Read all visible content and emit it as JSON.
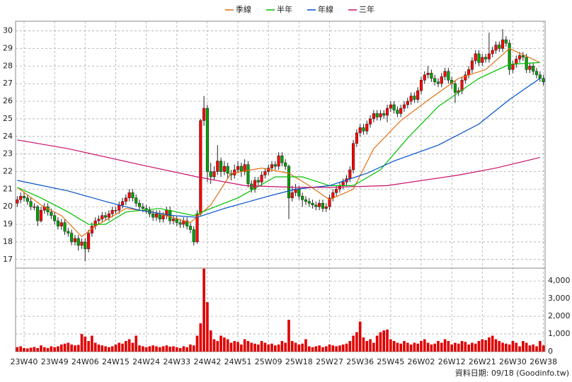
{
  "chart_data": {
    "type": "candlestick",
    "categories": [
      null,
      null,
      "23W40",
      null,
      null,
      null,
      null,
      null,
      null,
      null,
      null,
      "23W49",
      null,
      null,
      null,
      null,
      null,
      null,
      null,
      null,
      "24W06",
      null,
      null,
      null,
      null,
      null,
      null,
      null,
      null,
      "24W15",
      null,
      null,
      null,
      null,
      null,
      null,
      null,
      null,
      "24W24",
      null,
      null,
      null,
      null,
      null,
      null,
      null,
      null,
      "24W33",
      null,
      null,
      null,
      null,
      null,
      null,
      null,
      null,
      "24W42",
      null,
      null,
      null,
      null,
      null,
      null,
      null,
      null,
      "24W51",
      null,
      null,
      null,
      null,
      null,
      null,
      null,
      null,
      "25W09",
      null,
      null,
      null,
      null,
      null,
      null,
      null,
      null,
      "25W18",
      null,
      null,
      null,
      null,
      null,
      null,
      null,
      null,
      "25W27",
      null,
      null,
      null,
      null,
      null,
      null,
      null,
      null,
      "25W36",
      null,
      null,
      null,
      null,
      null,
      null,
      null,
      null,
      "25W45",
      null,
      null,
      null,
      null,
      null,
      null,
      null,
      null,
      "26W02",
      null,
      null,
      null,
      null,
      null,
      null,
      null,
      null,
      "26W12",
      null,
      null,
      null,
      null,
      null,
      null,
      null,
      null,
      "26W21",
      null,
      null,
      null,
      null,
      null,
      null,
      null,
      null,
      "26W30",
      null,
      null,
      null,
      null,
      null,
      null,
      null,
      null,
      "26W38"
    ],
    "open": [
      20.2,
      20.4,
      20.6,
      20.5,
      20.3,
      20.0,
      20.0,
      19.2,
      19.8,
      20.0,
      19.7,
      19.5,
      19.2,
      18.9,
      19.1,
      18.6,
      18.5,
      18.0,
      18.2,
      17.8,
      18.0,
      17.6,
      18.5,
      18.9,
      19.2,
      19.3,
      19.5,
      19.4,
      19.6,
      19.8,
      19.8,
      20.1,
      20.3,
      20.5,
      20.8,
      20.5,
      20.2,
      20.0,
      19.9,
      19.8,
      19.6,
      19.4,
      19.6,
      19.3,
      19.5,
      19.8,
      19.2,
      19.3,
      19.1,
      19.0,
      19.2,
      18.9,
      18.7,
      18.0,
      19.6,
      24.9,
      25.6,
      22.0,
      21.7,
      22.0,
      22.6,
      22.0,
      22.3,
      21.9,
      21.8,
      22.1,
      22.3,
      22.0,
      22.4,
      21.3,
      21.0,
      21.5,
      21.4,
      21.8,
      22.0,
      22.2,
      22.4,
      22.3,
      22.9,
      22.5,
      22.3,
      20.5,
      20.8,
      21.0,
      20.6,
      20.4,
      20.3,
      20.2,
      20.1,
      20.0,
      20.2,
      19.9,
      20.0,
      20.5,
      20.8,
      21.0,
      21.2,
      21.4,
      21.6,
      22.1,
      23.6,
      24.2,
      24.5,
      24.3,
      24.7,
      25.0,
      25.3,
      25.1,
      25.3,
      25.2,
      25.6,
      25.8,
      25.5,
      25.3,
      25.6,
      25.8,
      26.0,
      26.3,
      26.1,
      26.6,
      27.2,
      27.5,
      27.6,
      27.3,
      27.1,
      27.0,
      27.4,
      27.7,
      27.2,
      27.0,
      26.5,
      26.6,
      27.2,
      27.5,
      27.8,
      28.3,
      28.7,
      28.2,
      28.5,
      28.4,
      28.7,
      28.9,
      29.2,
      29.0,
      29.5,
      29.3,
      27.8,
      28.1,
      28.4,
      28.6,
      28.5,
      27.8,
      28.0,
      27.7,
      27.5,
      27.3
    ],
    "high": [
      20.6,
      20.8,
      20.8,
      20.7,
      20.5,
      20.2,
      20.1,
      20.0,
      20.2,
      20.2,
      19.9,
      19.7,
      19.4,
      19.3,
      19.3,
      18.8,
      18.7,
      18.4,
      18.4,
      18.2,
      18.2,
      18.7,
      19.1,
      19.4,
      19.5,
      19.7,
      19.7,
      19.8,
      20.0,
      20.0,
      20.3,
      20.5,
      20.7,
      21.0,
      21.0,
      20.7,
      20.4,
      20.2,
      20.1,
      20.0,
      19.8,
      19.8,
      19.8,
      19.7,
      20.0,
      20.0,
      19.5,
      19.5,
      19.3,
      19.4,
      19.4,
      19.1,
      18.9,
      19.8,
      25.0,
      26.3,
      25.8,
      22.5,
      22.3,
      23.5,
      22.8,
      22.6,
      22.5,
      22.1,
      22.4,
      22.6,
      22.5,
      22.7,
      22.6,
      21.5,
      21.7,
      21.7,
      22.0,
      22.2,
      22.4,
      22.6,
      22.6,
      23.1,
      23.1,
      22.7,
      22.4,
      21.2,
      21.3,
      21.2,
      20.8,
      20.6,
      20.5,
      20.4,
      20.3,
      20.4,
      20.4,
      20.2,
      20.7,
      21.0,
      21.2,
      21.4,
      21.6,
      21.8,
      22.3,
      23.8,
      24.4,
      24.7,
      24.7,
      24.9,
      25.2,
      25.5,
      25.5,
      25.5,
      25.5,
      25.8,
      26.0,
      26.0,
      25.7,
      25.8,
      26.0,
      26.2,
      26.5,
      26.5,
      26.8,
      27.4,
      27.7,
      28.0,
      27.8,
      27.5,
      27.3,
      27.6,
      27.9,
      27.9,
      27.4,
      27.2,
      26.8,
      27.4,
      27.7,
      28.0,
      28.5,
      28.9,
      28.9,
      28.7,
      28.7,
      29.9,
      29.1,
      29.4,
      29.4,
      30.1,
      29.7,
      29.5,
      28.3,
      28.6,
      28.8,
      28.8,
      28.7,
      28.2,
      28.2,
      27.9,
      27.7,
      27.5
    ],
    "low": [
      20.0,
      20.2,
      20.3,
      20.1,
      19.8,
      19.8,
      18.9,
      19.1,
      19.6,
      19.5,
      19.3,
      19.0,
      18.7,
      18.7,
      18.4,
      18.3,
      17.8,
      17.8,
      17.5,
      17.6,
      16.9,
      17.4,
      18.3,
      18.7,
      19.0,
      19.1,
      19.2,
      19.2,
      19.4,
      19.6,
      19.6,
      19.9,
      20.1,
      20.3,
      20.3,
      20.0,
      19.8,
      19.7,
      19.6,
      19.4,
      19.2,
      19.2,
      19.1,
      19.1,
      19.3,
      19.0,
      19.0,
      18.9,
      18.8,
      18.8,
      18.7,
      18.5,
      17.8,
      17.9,
      19.5,
      24.6,
      21.4,
      21.3,
      21.5,
      21.8,
      21.7,
      21.8,
      21.6,
      21.5,
      21.6,
      21.9,
      21.7,
      21.8,
      21.1,
      20.8,
      20.8,
      21.2,
      21.2,
      21.6,
      21.8,
      22.0,
      22.1,
      22.1,
      22.3,
      22.1,
      19.3,
      20.3,
      20.6,
      20.4,
      20.0,
      20.1,
      20.0,
      19.9,
      19.8,
      19.8,
      19.7,
      19.7,
      19.8,
      20.3,
      20.6,
      20.8,
      21.0,
      21.2,
      21.4,
      21.9,
      23.4,
      24.0,
      24.1,
      24.1,
      24.5,
      24.8,
      24.9,
      24.9,
      25.0,
      24.8,
      25.4,
      25.3,
      25.1,
      25.1,
      25.4,
      25.6,
      25.8,
      25.9,
      25.9,
      26.4,
      27.0,
      27.3,
      27.1,
      26.9,
      26.8,
      26.8,
      27.2,
      27.0,
      26.7,
      25.9,
      26.3,
      26.4,
      27.0,
      27.3,
      27.6,
      28.1,
      28.0,
      28.0,
      28.2,
      28.2,
      28.5,
      28.7,
      28.8,
      28.8,
      29.1,
      27.5,
      27.6,
      27.9,
      28.2,
      28.3,
      27.6,
      27.6,
      27.5,
      27.3,
      27.1,
      26.9
    ],
    "close": [
      20.4,
      20.6,
      20.5,
      20.3,
      20.0,
      20.0,
      19.2,
      19.8,
      20.0,
      19.7,
      19.5,
      19.2,
      18.9,
      19.1,
      18.6,
      18.5,
      18.0,
      18.2,
      17.8,
      18.0,
      17.6,
      18.5,
      18.9,
      19.2,
      19.3,
      19.5,
      19.4,
      19.6,
      19.8,
      19.8,
      20.1,
      20.3,
      20.5,
      20.8,
      20.5,
      20.2,
      20.0,
      19.9,
      19.8,
      19.6,
      19.4,
      19.6,
      19.3,
      19.5,
      19.8,
      19.2,
      19.3,
      19.1,
      19.0,
      19.2,
      18.9,
      18.7,
      18.0,
      19.6,
      24.9,
      25.6,
      22.0,
      21.7,
      22.0,
      22.6,
      22.0,
      22.3,
      21.9,
      21.8,
      22.1,
      22.3,
      22.0,
      22.4,
      21.3,
      21.0,
      21.5,
      21.4,
      21.8,
      22.0,
      22.2,
      22.4,
      22.3,
      22.9,
      22.5,
      22.3,
      20.5,
      20.8,
      21.0,
      20.6,
      20.4,
      20.3,
      20.2,
      20.1,
      20.0,
      20.2,
      19.9,
      20.0,
      20.5,
      20.8,
      21.0,
      21.2,
      21.4,
      21.6,
      22.1,
      23.6,
      24.2,
      24.5,
      24.3,
      24.7,
      25.0,
      25.3,
      25.1,
      25.3,
      25.2,
      25.6,
      25.8,
      25.5,
      25.3,
      25.6,
      25.8,
      26.0,
      26.3,
      26.1,
      26.6,
      27.2,
      27.5,
      27.6,
      27.3,
      27.1,
      27.0,
      27.4,
      27.7,
      27.2,
      27.0,
      26.5,
      26.6,
      27.2,
      27.5,
      27.8,
      28.3,
      28.7,
      28.2,
      28.5,
      28.4,
      28.7,
      28.9,
      29.2,
      29.0,
      29.5,
      29.3,
      27.8,
      28.1,
      28.4,
      28.6,
      28.5,
      27.8,
      28.0,
      27.7,
      27.5,
      27.3,
      27.1
    ],
    "up_color": "#ff0000",
    "down_color": "#00a000",
    "ylim": [
      16.55,
      30.55
    ],
    "yticks": [
      17,
      18,
      19,
      20,
      21,
      22,
      23,
      24,
      25,
      26,
      27,
      28,
      29,
      30
    ],
    "grid": true,
    "volume": {
      "color": "#e00000",
      "ylim": [
        0,
        4650
      ],
      "yticks": [
        0,
        {
          "value": 1000,
          "label": "1,000"
        },
        {
          "value": 2000,
          "label": "2,000"
        },
        {
          "value": 3000,
          "label": "3,000"
        },
        {
          "value": 4000,
          "label": "4,000"
        }
      ],
      "values": [
        250,
        300,
        200,
        180,
        220,
        260,
        200,
        350,
        250,
        200,
        300,
        250,
        300,
        400,
        450,
        500,
        400,
        350,
        380,
        1000,
        850,
        600,
        900,
        500,
        400,
        350,
        300,
        250,
        300,
        400,
        500,
        450,
        600,
        700,
        500,
        900,
        350,
        300,
        250,
        300,
        350,
        300,
        250,
        300,
        350,
        280,
        300,
        250,
        200,
        300,
        250,
        400,
        350,
        900,
        1600,
        4700,
        2800,
        1200,
        700,
        600,
        900,
        800,
        700,
        500,
        600,
        550,
        400,
        700,
        600,
        500,
        450,
        400,
        600,
        500,
        400,
        450,
        350,
        400,
        600,
        500,
        1800,
        600,
        500,
        400,
        450,
        700,
        300,
        250,
        300,
        350,
        250,
        300,
        400,
        350,
        300,
        350,
        400,
        450,
        600,
        900,
        1100,
        1700,
        800,
        600,
        700,
        500,
        900,
        1100,
        1200,
        1250,
        700,
        600,
        500,
        450,
        600,
        500,
        400,
        500,
        450,
        600,
        700,
        500,
        400,
        450,
        600,
        500,
        700,
        600,
        400,
        500,
        450,
        600,
        550,
        400,
        500,
        450,
        600,
        700,
        650,
        800,
        900,
        700,
        600,
        500,
        450,
        400,
        600,
        500,
        300,
        600,
        500,
        350,
        400,
        300,
        600,
        350
      ]
    },
    "series": [
      {
        "name": "季線",
        "color": "#e07010",
        "x": [
          0,
          7,
          13,
          19,
          23,
          32,
          40,
          51,
          57,
          63,
          72,
          80,
          86,
          92,
          99,
          105,
          113,
          122,
          130,
          138,
          145,
          154
        ],
        "values": [
          21.1,
          20.1,
          19.5,
          18.3,
          18.9,
          19.9,
          19.7,
          19.1,
          20.1,
          21.9,
          22.2,
          21.9,
          21.2,
          20.4,
          21.0,
          23.3,
          24.9,
          26.2,
          27.3,
          27.8,
          29.0,
          28.2
        ]
      },
      {
        "name": "半年",
        "color": "#00c000",
        "x": [
          0,
          7,
          15,
          21,
          26,
          32,
          42,
          52,
          57,
          65,
          76,
          84,
          92,
          99,
          107,
          115,
          124,
          136,
          145,
          154
        ],
        "values": [
          21.1,
          20.5,
          19.7,
          19.0,
          19.0,
          19.7,
          19.9,
          19.5,
          19.9,
          20.5,
          21.7,
          21.7,
          21.2,
          21.2,
          22.1,
          23.9,
          25.7,
          27.3,
          28.1,
          28.2
        ]
      },
      {
        "name": "年線",
        "color": "#0050c8",
        "x": [
          0,
          15,
          26,
          36,
          46,
          53,
          61,
          74,
          82,
          92,
          103,
          111,
          124,
          136,
          145,
          154
        ],
        "values": [
          21.5,
          20.9,
          20.3,
          19.8,
          19.5,
          19.4,
          19.9,
          20.6,
          21.0,
          21.2,
          21.9,
          22.6,
          23.5,
          24.7,
          26.1,
          27.3
        ]
      },
      {
        "name": "三年",
        "color": "#c8106a",
        "x": [
          0,
          15,
          36,
          53,
          67,
          82,
          92,
          109,
          130,
          141,
          154
        ],
        "values": [
          23.8,
          23.3,
          22.4,
          21.7,
          21.2,
          21.1,
          21.1,
          21.2,
          21.8,
          22.2,
          22.8
        ]
      }
    ],
    "source": "資料日期: 09/18  (Goodinfo.tw)"
  }
}
